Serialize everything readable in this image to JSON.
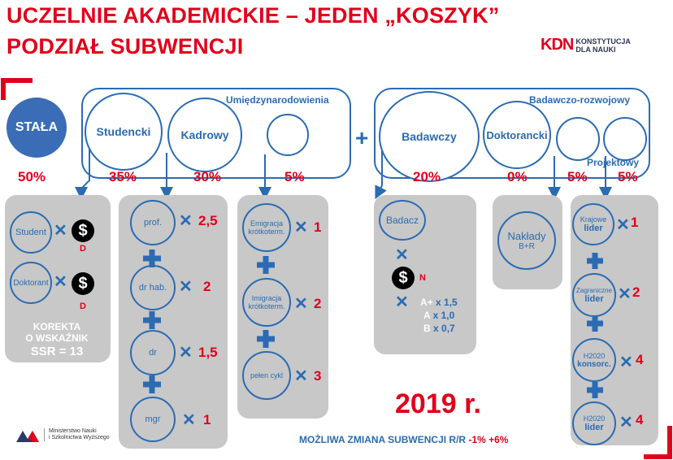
{
  "header": {
    "title_line1": "UCZELNIE AKADEMICKIE – JEDEN „KOSZYK”",
    "title_line2": "PODZIAŁ SUBWENCJI",
    "logo_mark": "KDN",
    "logo_line1": "KONSTYTUCJA",
    "logo_line2": "DLA NAUKI"
  },
  "top": {
    "stala": {
      "label": "STAŁA",
      "pct": "50%"
    },
    "group1": {
      "label": "Umiędzynarodowienia",
      "items": [
        {
          "label": "Studencki",
          "pct": "35%"
        },
        {
          "label": "Kadrowy",
          "pct": "30%"
        },
        {
          "label": "",
          "pct": "5%"
        }
      ]
    },
    "plus": "+",
    "group2": {
      "label": "Badawczo-rozwojowy",
      "items": [
        {
          "label": "Badawczy",
          "pct": "20%"
        },
        {
          "label": "Doktorancki",
          "pct": "0%"
        },
        {
          "label": "",
          "pct": "5%"
        },
        {
          "label": "Projektowy",
          "pct": "5%"
        }
      ]
    }
  },
  "panel1": {
    "student": "Student",
    "student_tag": "D",
    "doktorant": "Doktorant",
    "doktorant_tag": "D",
    "dollar": "$",
    "korekta_line1": "KOREKTA",
    "korekta_line2": "O WSKAŹNIK",
    "korekta_line3": "SSR = 13"
  },
  "panel2": {
    "items": [
      {
        "label": "prof.",
        "value": "2,5"
      },
      {
        "label": "dr hab.",
        "value": "2"
      },
      {
        "label": "dr",
        "value": "1,5"
      },
      {
        "label": "mgr",
        "value": "1"
      }
    ]
  },
  "panel3": {
    "items": [
      {
        "label": "Emigracja krótkoterm.",
        "value": "1"
      },
      {
        "label": "Imigracja krótkoterm.",
        "value": "2"
      },
      {
        "label": "pełen cykl",
        "value": "3"
      }
    ]
  },
  "panel4": {
    "label": "Badacz",
    "dollar": "$",
    "tag": "N",
    "rows": [
      {
        "cat": "A+",
        "value": "x 1,5"
      },
      {
        "cat": "A",
        "value": "x 1,0"
      },
      {
        "cat": "B",
        "value": "x 0,7"
      }
    ]
  },
  "panel5": {
    "line1": "Nakłady",
    "line2": "B+R"
  },
  "panel6": {
    "items": [
      {
        "line1": "Krajowe",
        "line2": "lider",
        "value": "1"
      },
      {
        "line1": "Zagraniczne",
        "line2": "lider",
        "value": "2"
      },
      {
        "line1": "H2020",
        "line2": "konsorc.",
        "value": "4"
      },
      {
        "line1": "H2020",
        "line2": "lider",
        "value": "4"
      }
    ]
  },
  "year": "2019 r.",
  "footer_note": {
    "text": "MOŻLIWA ZMIANA SUBWENCJI R/R",
    "range": "-1% +6%"
  },
  "ministry": {
    "line1": "Ministerstwo Nauki",
    "line2": "i Szkolnictwa Wyższego"
  },
  "colors": {
    "red": "#e1001a",
    "blue": "#2b6bb3",
    "panel": "#c8c8c8"
  }
}
